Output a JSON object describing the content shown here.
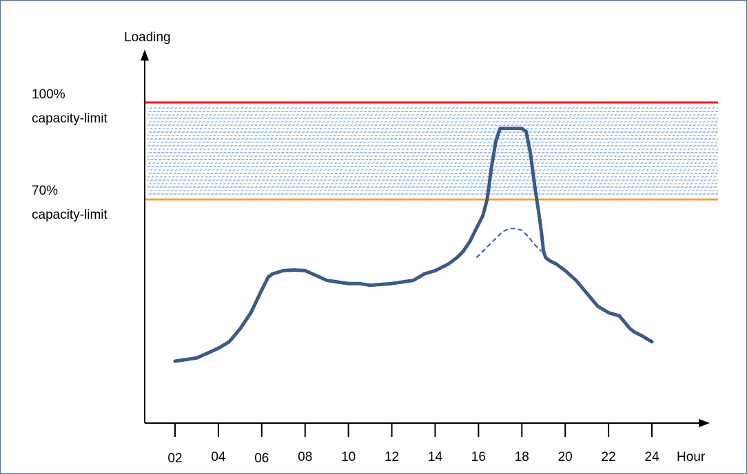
{
  "chart_data": {
    "type": "line",
    "ylabel": "Loading",
    "xlabel": "Hour",
    "x_ticks": [
      "02",
      "04",
      "06",
      "08",
      "10",
      "12",
      "14",
      "16",
      "18",
      "20",
      "22",
      "24"
    ],
    "xlim": [
      2,
      24
    ],
    "ylim": [
      0,
      115
    ],
    "reference_lines": [
      {
        "label_line1": "100%",
        "label_line2": "capacity-limit",
        "value": 100,
        "color": "#e8191e"
      },
      {
        "label_line1": "70%",
        "label_line2": "capacity-limit",
        "value": 70,
        "color": "#f0a04b"
      }
    ],
    "band": {
      "from": 70,
      "to": 100,
      "fill": "hatched",
      "color": "#9bbbe0"
    },
    "series": [
      {
        "style": "solid",
        "color": "#3a5a88",
        "x": [
          2,
          2.5,
          3,
          3.5,
          4,
          4.5,
          5,
          5.5,
          6,
          6.3,
          6.5,
          7,
          7.5,
          8,
          8.5,
          9,
          9.5,
          10,
          10.5,
          11,
          12,
          13,
          13.5,
          14,
          14.3,
          14.6,
          15,
          15.3,
          15.6,
          15.9,
          16.2,
          16.4,
          16.5,
          16.6,
          16.8,
          17,
          17.2,
          17.5,
          17.8,
          18,
          18.2,
          18.4,
          18.6,
          18.8,
          18.9,
          19.0,
          19.1,
          19.3,
          19.6,
          20,
          20.5,
          21,
          21.5,
          22,
          22.5,
          23,
          23.2,
          23.5,
          24
        ],
        "y": [
          20,
          20.5,
          21,
          22.5,
          24,
          26,
          30,
          35,
          42,
          46,
          47,
          48,
          48.2,
          48,
          46.5,
          45,
          44.5,
          44,
          44,
          43.5,
          44,
          45,
          47,
          48,
          49,
          50,
          52,
          54,
          57,
          61,
          65,
          70,
          75,
          80,
          88,
          92,
          92,
          92,
          92,
          92,
          91,
          84,
          74,
          65,
          60,
          54,
          52,
          51,
          50,
          48,
          45,
          41,
          37,
          35,
          34,
          30,
          29,
          28,
          26
        ]
      },
      {
        "style": "dashed",
        "color": "#3a5a88",
        "x": [
          15.9,
          16.2,
          16.5,
          16.8,
          17.1,
          17.4,
          17.7,
          18,
          18.3,
          18.6,
          18.9
        ],
        "y": [
          52,
          54,
          56,
          58,
          60,
          61,
          61,
          60.5,
          58.5,
          56,
          54
        ]
      }
    ]
  }
}
